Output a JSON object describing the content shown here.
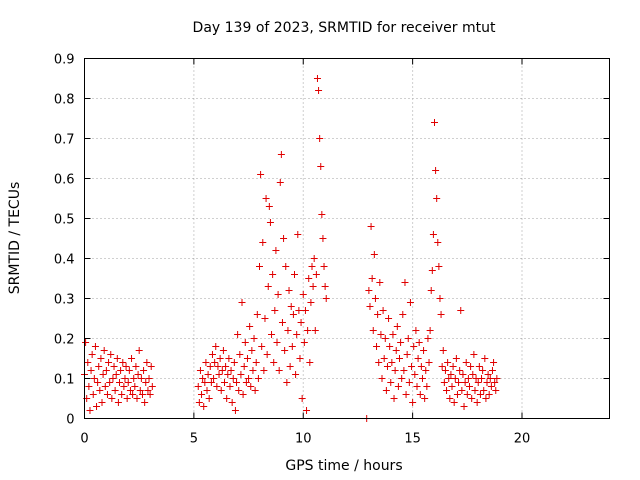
{
  "chart_data": {
    "type": "scatter",
    "title": "Day 139 of 2023, SRMTID for receiver mtut",
    "xlabel": "GPS time / hours",
    "ylabel": "SRMTID / TECUs",
    "xlim": [
      0,
      24
    ],
    "ylim": [
      0,
      0.9
    ],
    "x_ticks": [
      0,
      5,
      10,
      15,
      20
    ],
    "y_ticks": [
      0,
      0.1,
      0.2,
      0.3,
      0.4,
      0.5,
      0.6,
      0.7,
      0.8,
      0.9
    ],
    "y_tick_labels": [
      "0",
      "0.1",
      "0.2",
      "0.3",
      "0.4",
      "0.5",
      "0.6",
      "0.7",
      "0.8",
      "0.9"
    ],
    "grid": true,
    "marker": "+",
    "color": "#e00000",
    "series": [
      {
        "points": [
          [
            0.0,
            0.11
          ],
          [
            0.05,
            0.19
          ],
          [
            0.1,
            0.05
          ],
          [
            0.15,
            0.14
          ],
          [
            0.2,
            0.08
          ],
          [
            0.25,
            0.02
          ],
          [
            0.3,
            0.12
          ],
          [
            0.35,
            0.16
          ],
          [
            0.4,
            0.06
          ],
          [
            0.45,
            0.1
          ],
          [
            0.5,
            0.18
          ],
          [
            0.55,
            0.03
          ],
          [
            0.6,
            0.09
          ],
          [
            0.65,
            0.13
          ],
          [
            0.7,
            0.07
          ],
          [
            0.75,
            0.15
          ],
          [
            0.8,
            0.04
          ],
          [
            0.85,
            0.11
          ],
          [
            0.9,
            0.17
          ],
          [
            0.95,
            0.08
          ],
          [
            1.0,
            0.12
          ],
          [
            1.05,
            0.06
          ],
          [
            1.1,
            0.14
          ],
          [
            1.15,
            0.09
          ],
          [
            1.2,
            0.16
          ],
          [
            1.25,
            0.05
          ],
          [
            1.3,
            0.1
          ],
          [
            1.35,
            0.13
          ],
          [
            1.4,
            0.07
          ],
          [
            1.45,
            0.11
          ],
          [
            1.5,
            0.15
          ],
          [
            1.55,
            0.04
          ],
          [
            1.6,
            0.09
          ],
          [
            1.65,
            0.12
          ],
          [
            1.7,
            0.06
          ],
          [
            1.75,
            0.14
          ],
          [
            1.8,
            0.08
          ],
          [
            1.85,
            0.1
          ],
          [
            1.9,
            0.13
          ],
          [
            1.95,
            0.05
          ],
          [
            2.0,
            0.09
          ],
          [
            2.05,
            0.12
          ],
          [
            2.1,
            0.07
          ],
          [
            2.15,
            0.15
          ],
          [
            2.2,
            0.06
          ],
          [
            2.25,
            0.1
          ],
          [
            2.3,
            0.08
          ],
          [
            2.35,
            0.13
          ],
          [
            2.4,
            0.05
          ],
          [
            2.45,
            0.11
          ],
          [
            2.5,
            0.17
          ],
          [
            2.55,
            0.07
          ],
          [
            2.6,
            0.1
          ],
          [
            2.65,
            0.06
          ],
          [
            2.7,
            0.12
          ],
          [
            2.75,
            0.04
          ],
          [
            2.8,
            0.09
          ],
          [
            2.85,
            0.14
          ],
          [
            2.9,
            0.07
          ],
          [
            2.95,
            0.1
          ],
          [
            3.0,
            0.06
          ],
          [
            3.05,
            0.13
          ],
          [
            3.1,
            0.08
          ],
          [
            5.2,
            0.08
          ],
          [
            5.25,
            0.04
          ],
          [
            5.3,
            0.12
          ],
          [
            5.35,
            0.06
          ],
          [
            5.4,
            0.1
          ],
          [
            5.45,
            0.03
          ],
          [
            5.5,
            0.09
          ],
          [
            5.55,
            0.14
          ],
          [
            5.6,
            0.07
          ],
          [
            5.65,
            0.11
          ],
          [
            5.7,
            0.05
          ],
          [
            5.75,
            0.13
          ],
          [
            5.8,
            0.09
          ],
          [
            5.85,
            0.16
          ],
          [
            5.9,
            0.1
          ],
          [
            5.95,
            0.14
          ],
          [
            6.0,
            0.18
          ],
          [
            6.05,
            0.08
          ],
          [
            6.1,
            0.13
          ],
          [
            6.15,
            0.11
          ],
          [
            6.2,
            0.15
          ],
          [
            6.25,
            0.07
          ],
          [
            6.3,
            0.12
          ],
          [
            6.35,
            0.17
          ],
          [
            6.4,
            0.09
          ],
          [
            6.45,
            0.13
          ],
          [
            6.5,
            0.05
          ],
          [
            6.55,
            0.11
          ],
          [
            6.6,
            0.15
          ],
          [
            6.65,
            0.08
          ],
          [
            6.7,
            0.12
          ],
          [
            6.75,
            0.04
          ],
          [
            6.8,
            0.1
          ],
          [
            6.85,
            0.14
          ],
          [
            6.9,
            0.02
          ],
          [
            6.95,
            0.09
          ],
          [
            7.0,
            0.21
          ],
          [
            7.05,
            0.07
          ],
          [
            7.1,
            0.16
          ],
          [
            7.15,
            0.11
          ],
          [
            7.2,
            0.29
          ],
          [
            7.25,
            0.06
          ],
          [
            7.3,
            0.13
          ],
          [
            7.35,
            0.19
          ],
          [
            7.4,
            0.09
          ],
          [
            7.45,
            0.15
          ],
          [
            7.5,
            0.1
          ],
          [
            7.55,
            0.23
          ],
          [
            7.6,
            0.08
          ],
          [
            7.65,
            0.17
          ],
          [
            7.7,
            0.12
          ],
          [
            7.75,
            0.2
          ],
          [
            7.8,
            0.07
          ],
          [
            7.85,
            0.14
          ],
          [
            7.9,
            0.26
          ],
          [
            7.95,
            0.1
          ],
          [
            8.0,
            0.38
          ],
          [
            8.05,
            0.61
          ],
          [
            8.1,
            0.18
          ],
          [
            8.15,
            0.44
          ],
          [
            8.2,
            0.12
          ],
          [
            8.25,
            0.25
          ],
          [
            8.3,
            0.55
          ],
          [
            8.35,
            0.16
          ],
          [
            8.4,
            0.33
          ],
          [
            8.45,
            0.53
          ],
          [
            8.5,
            0.49
          ],
          [
            8.55,
            0.21
          ],
          [
            8.6,
            0.36
          ],
          [
            8.65,
            0.14
          ],
          [
            8.7,
            0.27
          ],
          [
            8.75,
            0.42
          ],
          [
            8.8,
            0.19
          ],
          [
            8.85,
            0.31
          ],
          [
            8.9,
            0.12
          ],
          [
            8.95,
            0.59
          ],
          [
            9.0,
            0.66
          ],
          [
            9.05,
            0.24
          ],
          [
            9.1,
            0.45
          ],
          [
            9.15,
            0.17
          ],
          [
            9.2,
            0.38
          ],
          [
            9.25,
            0.09
          ],
          [
            9.3,
            0.22
          ],
          [
            9.35,
            0.32
          ],
          [
            9.4,
            0.13
          ],
          [
            9.45,
            0.28
          ],
          [
            9.5,
            0.18
          ],
          [
            9.55,
            0.26
          ],
          [
            9.6,
            0.36
          ],
          [
            9.65,
            0.11
          ],
          [
            9.7,
            0.21
          ],
          [
            9.75,
            0.46
          ],
          [
            9.8,
            0.27
          ],
          [
            9.85,
            0.15
          ],
          [
            9.9,
            0.24
          ],
          [
            9.95,
            0.05
          ],
          [
            10.0,
            0.31
          ],
          [
            10.05,
            0.19
          ],
          [
            10.1,
            0.27
          ],
          [
            10.15,
            0.02
          ],
          [
            10.2,
            0.22
          ],
          [
            10.25,
            0.35
          ],
          [
            10.3,
            0.14
          ],
          [
            10.35,
            0.29
          ],
          [
            10.4,
            0.38
          ],
          [
            10.45,
            0.33
          ],
          [
            10.5,
            0.4
          ],
          [
            10.55,
            0.22
          ],
          [
            10.6,
            0.36
          ],
          [
            10.65,
            0.85
          ],
          [
            10.7,
            0.82
          ],
          [
            10.75,
            0.7
          ],
          [
            10.8,
            0.63
          ],
          [
            10.85,
            0.51
          ],
          [
            10.9,
            0.45
          ],
          [
            10.95,
            0.38
          ],
          [
            11.0,
            0.33
          ],
          [
            11.05,
            0.3
          ],
          [
            12.9,
            0.0
          ],
          [
            13.0,
            0.32
          ],
          [
            13.05,
            0.28
          ],
          [
            13.1,
            0.48
          ],
          [
            13.15,
            0.35
          ],
          [
            13.2,
            0.22
          ],
          [
            13.25,
            0.41
          ],
          [
            13.3,
            0.3
          ],
          [
            13.35,
            0.18
          ],
          [
            13.4,
            0.26
          ],
          [
            13.45,
            0.14
          ],
          [
            13.5,
            0.34
          ],
          [
            13.55,
            0.21
          ],
          [
            13.6,
            0.1
          ],
          [
            13.65,
            0.27
          ],
          [
            13.7,
            0.15
          ],
          [
            13.75,
            0.2
          ],
          [
            13.8,
            0.07
          ],
          [
            13.85,
            0.13
          ],
          [
            13.9,
            0.25
          ],
          [
            13.95,
            0.18
          ],
          [
            14.0,
            0.09
          ],
          [
            14.05,
            0.14
          ],
          [
            14.1,
            0.21
          ],
          [
            14.15,
            0.05
          ],
          [
            14.2,
            0.12
          ],
          [
            14.25,
            0.17
          ],
          [
            14.3,
            0.23
          ],
          [
            14.35,
            0.08
          ],
          [
            14.4,
            0.15
          ],
          [
            14.45,
            0.19
          ],
          [
            14.5,
            0.1
          ],
          [
            14.55,
            0.26
          ],
          [
            14.6,
            0.12
          ],
          [
            14.65,
            0.34
          ],
          [
            14.7,
            0.06
          ],
          [
            14.75,
            0.16
          ],
          [
            14.8,
            0.2
          ],
          [
            14.85,
            0.09
          ],
          [
            14.9,
            0.29
          ],
          [
            14.95,
            0.13
          ],
          [
            15.0,
            0.04
          ],
          [
            15.05,
            0.18
          ],
          [
            15.1,
            0.11
          ],
          [
            15.15,
            0.22
          ],
          [
            15.2,
            0.08
          ],
          [
            15.25,
            0.15
          ],
          [
            15.3,
            0.19
          ],
          [
            15.35,
            0.06
          ],
          [
            15.4,
            0.13
          ],
          [
            15.45,
            0.1
          ],
          [
            15.5,
            0.17
          ],
          [
            15.55,
            0.05
          ],
          [
            15.6,
            0.12
          ],
          [
            15.65,
            0.08
          ],
          [
            15.7,
            0.2
          ],
          [
            15.75,
            0.14
          ],
          [
            15.8,
            0.22
          ],
          [
            15.85,
            0.32
          ],
          [
            15.9,
            0.37
          ],
          [
            15.95,
            0.46
          ],
          [
            16.0,
            0.74
          ],
          [
            16.05,
            0.62
          ],
          [
            16.1,
            0.55
          ],
          [
            16.15,
            0.44
          ],
          [
            16.2,
            0.38
          ],
          [
            16.25,
            0.3
          ],
          [
            16.3,
            0.26
          ],
          [
            16.35,
            0.13
          ],
          [
            16.4,
            0.17
          ],
          [
            16.45,
            0.09
          ],
          [
            16.5,
            0.12
          ],
          [
            16.55,
            0.07
          ],
          [
            16.6,
            0.14
          ],
          [
            16.65,
            0.1
          ],
          [
            16.7,
            0.05
          ],
          [
            16.75,
            0.11
          ],
          [
            16.8,
            0.08
          ],
          [
            16.85,
            0.13
          ],
          [
            16.9,
            0.04
          ],
          [
            16.95,
            0.1
          ],
          [
            17.0,
            0.15
          ],
          [
            17.05,
            0.06
          ],
          [
            17.1,
            0.09
          ],
          [
            17.15,
            0.12
          ],
          [
            17.2,
            0.27
          ],
          [
            17.25,
            0.07
          ],
          [
            17.3,
            0.11
          ],
          [
            17.35,
            0.03
          ],
          [
            17.4,
            0.09
          ],
          [
            17.45,
            0.14
          ],
          [
            17.5,
            0.06
          ],
          [
            17.55,
            0.1
          ],
          [
            17.6,
            0.08
          ],
          [
            17.65,
            0.13
          ],
          [
            17.7,
            0.05
          ],
          [
            17.75,
            0.11
          ],
          [
            17.8,
            0.16
          ],
          [
            17.85,
            0.07
          ],
          [
            17.9,
            0.1
          ],
          [
            17.95,
            0.04
          ],
          [
            18.0,
            0.09
          ],
          [
            18.05,
            0.13
          ],
          [
            18.1,
            0.06
          ],
          [
            18.15,
            0.1
          ],
          [
            18.2,
            0.12
          ],
          [
            18.25,
            0.07
          ],
          [
            18.3,
            0.15
          ],
          [
            18.35,
            0.05
          ],
          [
            18.4,
            0.09
          ],
          [
            18.45,
            0.11
          ],
          [
            18.5,
            0.06
          ],
          [
            18.55,
            0.1
          ],
          [
            18.6,
            0.08
          ],
          [
            18.65,
            0.12
          ],
          [
            18.7,
            0.14
          ],
          [
            18.75,
            0.09
          ],
          [
            18.8,
            0.07
          ],
          [
            18.85,
            0.1
          ]
        ]
      }
    ]
  }
}
